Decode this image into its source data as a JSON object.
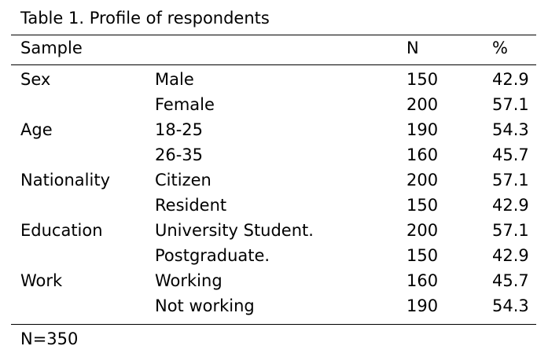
{
  "caption": "Table 1. Profile of respondents",
  "header": {
    "sample": "Sample",
    "n": "N",
    "percent": "%"
  },
  "rows": [
    {
      "category": "Sex",
      "subcategory": "Male",
      "n": "150",
      "percent": "42.9"
    },
    {
      "category": "",
      "subcategory": "Female",
      "n": "200",
      "percent": "57.1"
    },
    {
      "category": "Age",
      "subcategory": "18-25",
      "n": "190",
      "percent": "54.3"
    },
    {
      "category": "",
      "subcategory": "26-35",
      "n": "160",
      "percent": "45.7"
    },
    {
      "category": "Nationality",
      "subcategory": "Citizen",
      "n": "200",
      "percent": "57.1"
    },
    {
      "category": "",
      "subcategory": "Resident",
      "n": "150",
      "percent": "42.9"
    },
    {
      "category": "Education",
      "subcategory": "University Student.",
      "n": "200",
      "percent": "57.1"
    },
    {
      "category": "",
      "subcategory": "Postgraduate.",
      "n": "150",
      "percent": "42.9"
    },
    {
      "category": "Work",
      "subcategory": "Working",
      "n": "160",
      "percent": "45.7"
    },
    {
      "category": "",
      "subcategory": "Not working",
      "n": "190",
      "percent": "54.3"
    }
  ],
  "footnote": "N=350"
}
